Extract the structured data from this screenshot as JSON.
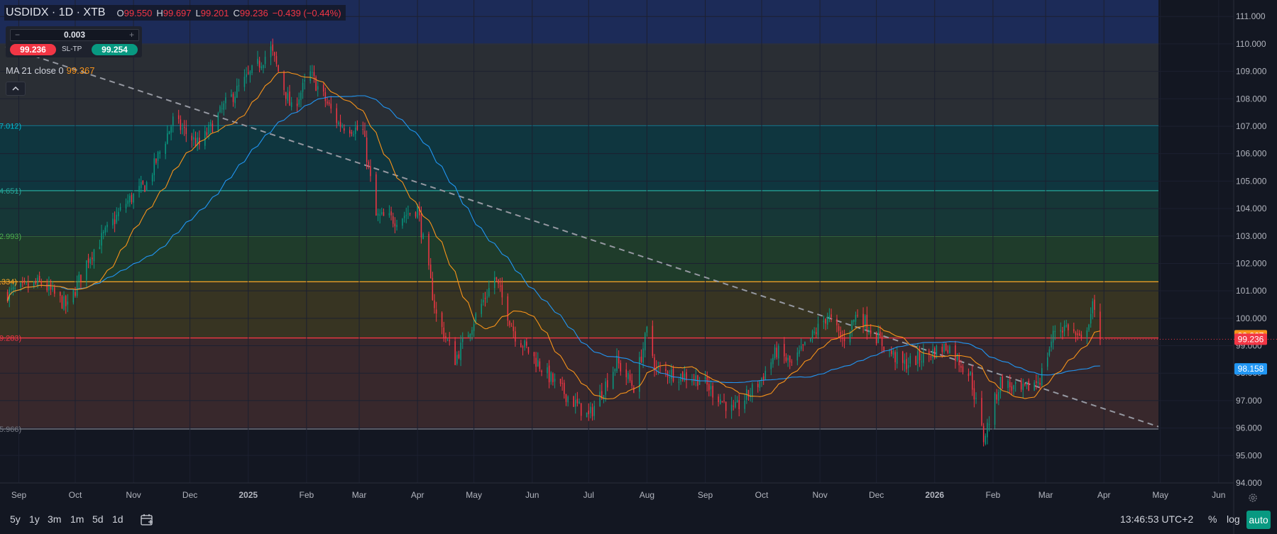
{
  "header": {
    "symbol": "USDIDX · 1D · XTB",
    "open_label": "O",
    "open": "99.550",
    "high_label": "H",
    "high": "99.697",
    "low_label": "L",
    "low": "99.201",
    "close_label": "C",
    "close": "99.236",
    "change": "−0.439 (−0.44%)"
  },
  "trade": {
    "minus": "−",
    "plus": "+",
    "quantity": "0.003",
    "sell_price": "99.236",
    "sltp_label": "SL-TP",
    "buy_price": "99.254"
  },
  "indicator": {
    "label": "MA 21 close 0",
    "value": "99.367"
  },
  "bottom": {
    "timeframes": [
      "5y",
      "1y",
      "3m",
      "1m",
      "5d",
      "1d"
    ],
    "clock": "13:46:53 UTC+2",
    "percent": "%",
    "log": "log",
    "auto": "auto"
  },
  "colors": {
    "background": "#131722",
    "up": "#089981",
    "down": "#f23645",
    "ma_short": "#f7931a",
    "ma_long": "#2196f3",
    "fib": [
      "#5d606b",
      "#00bcd4",
      "#26a69a",
      "#4caf50",
      "#ffa726",
      "#f23645",
      "#787b86"
    ]
  },
  "chart_data": {
    "type": "candlestick",
    "symbol": "USDIDX",
    "interval": "1D",
    "ylim": [
      94,
      111.6
    ],
    "y_ticks": [
      "111.000",
      "110.000",
      "109.000",
      "108.000",
      "107.000",
      "106.000",
      "105.000",
      "104.000",
      "103.000",
      "102.000",
      "101.000",
      "100.000",
      "99.000",
      "98.000",
      "97.000",
      "96.000",
      "95.000",
      "94.000"
    ],
    "x_ticks": [
      {
        "label": "Sep",
        "date": "2024-09-01",
        "bold": false
      },
      {
        "label": "Oct",
        "date": "2024-10-01",
        "bold": false
      },
      {
        "label": "Nov",
        "date": "2024-11-01",
        "bold": false
      },
      {
        "label": "Dec",
        "date": "2024-12-01",
        "bold": false
      },
      {
        "label": "2025",
        "date": "2025-01-01",
        "bold": true
      },
      {
        "label": "Feb",
        "date": "2025-02-01",
        "bold": false
      },
      {
        "label": "Mar",
        "date": "2025-03-01",
        "bold": false
      },
      {
        "label": "Apr",
        "date": "2025-04-01",
        "bold": false
      },
      {
        "label": "May",
        "date": "2025-05-01",
        "bold": false
      },
      {
        "label": "Jun",
        "date": "2025-06-01",
        "bold": false
      },
      {
        "label": "Jul",
        "date": "2025-07-01",
        "bold": false
      },
      {
        "label": "Aug",
        "date": "2025-08-01",
        "bold": false
      },
      {
        "label": "Sep",
        "date": "2025-09-01",
        "bold": false
      },
      {
        "label": "Oct",
        "date": "2025-10-01",
        "bold": false
      },
      {
        "label": "Nov",
        "date": "2025-11-01",
        "bold": false
      },
      {
        "label": "Dec",
        "date": "2025-12-01",
        "bold": false
      },
      {
        "label": "2026",
        "date": "2026-01-01",
        "bold": true
      },
      {
        "label": "Feb",
        "date": "2026-02-01",
        "bold": false
      },
      {
        "label": "Mar",
        "date": "2026-03-01",
        "bold": false
      },
      {
        "label": "Apr",
        "date": "2026-04-01",
        "bold": false
      },
      {
        "label": "May",
        "date": "2026-05-01",
        "bold": false
      },
      {
        "label": "Jun",
        "date": "2026-06-01",
        "bold": false
      }
    ],
    "x_range": [
      "2024-08-22",
      "2026-06-09"
    ],
    "fib_levels": [
      {
        "price": 110.0,
        "label": "",
        "color": "#5d606b"
      },
      {
        "price": 107.012,
        "label": "7.012)",
        "color": "#00bcd4"
      },
      {
        "price": 104.651,
        "label": "4.651)",
        "color": "#26a69a"
      },
      {
        "price": 102.993,
        "label": "2.993)",
        "color": "#4caf50"
      },
      {
        "price": 101.334,
        "label": ".334)",
        "color": "#ffa726"
      },
      {
        "price": 99.283,
        "label": "9.283)",
        "color": "#f23645"
      },
      {
        "price": 95.966,
        "label": "5.966)",
        "color": "#787b86"
      }
    ],
    "fib_end": "2026-04-30",
    "top_zone_top": 111.6,
    "trendline": [
      {
        "date": "2024-08-25",
        "price": 109.9
      },
      {
        "date": "2026-04-30",
        "price": 96.05
      }
    ],
    "price_markers": [
      {
        "value": "99.367",
        "price": 99.367,
        "color": "#f7931a"
      },
      {
        "value": "99.236",
        "price": 99.236,
        "color": "#f23645"
      },
      {
        "value": "98.158",
        "price": 98.158,
        "color": "#2196f3"
      }
    ],
    "close_keypoints": [
      {
        "date": "2024-08-26",
        "close": 100.9
      },
      {
        "date": "2024-09-13",
        "close": 101.3
      },
      {
        "date": "2024-09-27",
        "close": 100.4
      },
      {
        "date": "2024-10-08",
        "close": 102.2
      },
      {
        "date": "2024-10-28",
        "close": 104.2
      },
      {
        "date": "2024-11-08",
        "close": 104.9
      },
      {
        "date": "2024-11-22",
        "close": 107.2
      },
      {
        "date": "2024-12-06",
        "close": 106.3
      },
      {
        "date": "2024-12-20",
        "close": 107.8
      },
      {
        "date": "2025-01-13",
        "close": 109.8
      },
      {
        "date": "2025-01-24",
        "close": 107.6
      },
      {
        "date": "2025-02-03",
        "close": 108.9
      },
      {
        "date": "2025-02-18",
        "close": 107.1
      },
      {
        "date": "2025-03-03",
        "close": 106.8
      },
      {
        "date": "2025-03-10",
        "close": 103.7
      },
      {
        "date": "2025-03-20",
        "close": 103.6
      },
      {
        "date": "2025-04-01",
        "close": 104.0
      },
      {
        "date": "2025-04-11",
        "close": 100.1
      },
      {
        "date": "2025-04-21",
        "close": 98.5
      },
      {
        "date": "2025-05-12",
        "close": 101.5
      },
      {
        "date": "2025-05-23",
        "close": 99.4
      },
      {
        "date": "2025-06-12",
        "close": 97.7
      },
      {
        "date": "2025-07-01",
        "close": 96.4
      },
      {
        "date": "2025-07-16",
        "close": 98.4
      },
      {
        "date": "2025-07-25",
        "close": 97.5
      },
      {
        "date": "2025-08-01",
        "close": 99.5
      },
      {
        "date": "2025-08-06",
        "close": 98.1
      },
      {
        "date": "2025-08-29",
        "close": 97.8
      },
      {
        "date": "2025-09-16",
        "close": 96.6
      },
      {
        "date": "2025-09-30",
        "close": 97.7
      },
      {
        "date": "2025-10-09",
        "close": 98.8
      },
      {
        "date": "2025-10-17",
        "close": 98.3
      },
      {
        "date": "2025-11-05",
        "close": 100.1
      },
      {
        "date": "2025-11-13",
        "close": 99.2
      },
      {
        "date": "2025-11-21",
        "close": 100.2
      },
      {
        "date": "2025-12-05",
        "close": 99.0
      },
      {
        "date": "2025-12-15",
        "close": 98.3
      },
      {
        "date": "2026-01-08",
        "close": 99.0
      },
      {
        "date": "2026-01-20",
        "close": 97.9
      },
      {
        "date": "2026-01-27",
        "close": 95.6
      },
      {
        "date": "2026-02-05",
        "close": 97.7
      },
      {
        "date": "2026-02-16",
        "close": 97.3
      },
      {
        "date": "2026-02-26",
        "close": 97.8
      },
      {
        "date": "2026-03-06",
        "close": 99.6
      },
      {
        "date": "2026-03-13",
        "close": 99.7
      },
      {
        "date": "2026-03-20",
        "close": 99.1
      },
      {
        "date": "2026-03-26",
        "close": 100.4
      },
      {
        "date": "2026-03-30",
        "close": 99.236
      }
    ],
    "ma_short": {
      "name": "MA 21 close 0",
      "period": 21,
      "color": "#f7931a"
    },
    "ma_long": {
      "period": 60,
      "color": "#2196f3"
    }
  }
}
